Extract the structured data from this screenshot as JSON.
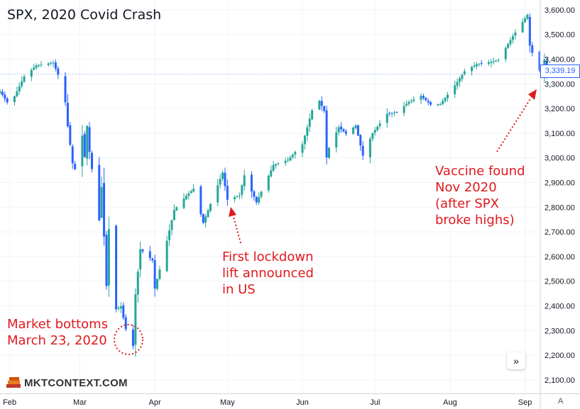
{
  "title": "SPX, 2020 Covid Crash",
  "annotations": {
    "bottom": "Market bottoms\nMarch 23, 2020",
    "lockdown": "First lockdown\nlift announced\nin US",
    "vaccine": "Vaccine found\nNov 2020\n(after SPX\nbroke highs)"
  },
  "colors": {
    "up": "#26a69a",
    "down": "#2962ff",
    "annotation": "#e0191e",
    "grid": "#f0f3fa"
  },
  "last_price_label": "3,339.19",
  "logo_text": "MKTCONTEXT.COM",
  "auto_label": "A",
  "scroll_icon": "double-chevron-right-icon",
  "chart_data": {
    "type": "candlestick",
    "title": "SPX, 2020 Covid Crash",
    "y_ticks": [
      "2,100.00",
      "2,200.00",
      "2,300.00",
      "2,400.00",
      "2,500.00",
      "2,600.00",
      "2,700.00",
      "2,800.00",
      "2,900.00",
      "3,000.00",
      "3,100.00",
      "3,200.00",
      "3,300.00",
      "3,400.00",
      "3,500.00",
      "3,600.00"
    ],
    "y_tick_values": [
      2100,
      2200,
      2300,
      2400,
      2500,
      2600,
      2700,
      2800,
      2900,
      3000,
      3100,
      3200,
      3300,
      3400,
      3500,
      3600
    ],
    "x_ticks": [
      "Feb",
      "Mar",
      "Apr",
      "May",
      "Jun",
      "Jul",
      "Aug",
      "Sep"
    ],
    "x_tick_dates": [
      "2020-02-01",
      "2020-03-01",
      "2020-04-01",
      "2020-05-01",
      "2020-06-01",
      "2020-07-01",
      "2020-08-01",
      "2020-09-01"
    ],
    "x_range": [
      "2020-01-28",
      "2020-09-07"
    ],
    "ylim": [
      2045,
      3640
    ],
    "last_price": 3339.19,
    "grid": true,
    "waypoints": [
      [
        "2020-01-28",
        3270
      ],
      [
        "2020-01-31",
        3225
      ],
      [
        "2020-02-03",
        3250
      ],
      [
        "2020-02-07",
        3330
      ],
      [
        "2020-02-12",
        3375
      ],
      [
        "2020-02-19",
        3386
      ],
      [
        "2020-02-21",
        3337
      ],
      [
        "2020-02-24",
        3225
      ],
      [
        "2020-02-25",
        3128
      ],
      [
        "2020-02-27",
        2978
      ],
      [
        "2020-02-28",
        2954
      ],
      [
        "2020-03-02",
        3090
      ],
      [
        "2020-03-03",
        3003
      ],
      [
        "2020-03-04",
        3130
      ],
      [
        "2020-03-05",
        3024
      ],
      [
        "2020-03-09",
        2746
      ],
      [
        "2020-03-10",
        2882
      ],
      [
        "2020-03-12",
        2480
      ],
      [
        "2020-03-13",
        2711
      ],
      [
        "2020-03-16",
        2386
      ],
      [
        "2020-03-18",
        2398
      ],
      [
        "2020-03-20",
        2305
      ],
      [
        "2020-03-23",
        2237
      ],
      [
        "2020-03-24",
        2447
      ],
      [
        "2020-03-26",
        2630
      ],
      [
        "2020-03-31",
        2585
      ],
      [
        "2020-04-01",
        2470
      ],
      [
        "2020-04-06",
        2664
      ],
      [
        "2020-04-09",
        2789
      ],
      [
        "2020-04-14",
        2846
      ],
      [
        "2020-04-17",
        2875
      ],
      [
        "2020-04-21",
        2737
      ],
      [
        "2020-04-29",
        2940
      ],
      [
        "2020-05-01",
        2830
      ],
      [
        "2020-05-06",
        2848
      ],
      [
        "2020-05-08",
        2929
      ],
      [
        "2020-05-13",
        2820
      ],
      [
        "2020-05-15",
        2863
      ],
      [
        "2020-05-20",
        2971
      ],
      [
        "2020-05-26",
        2992
      ],
      [
        "2020-06-01",
        3055
      ],
      [
        "2020-06-05",
        3193
      ],
      [
        "2020-06-08",
        3232
      ],
      [
        "2020-06-10",
        3190
      ],
      [
        "2020-06-11",
        3002
      ],
      [
        "2020-06-12",
        3041
      ],
      [
        "2020-06-16",
        3124
      ],
      [
        "2020-06-19",
        3098
      ],
      [
        "2020-06-23",
        3131
      ],
      [
        "2020-06-26",
        3009
      ],
      [
        "2020-06-30",
        3100
      ],
      [
        "2020-07-06",
        3179
      ],
      [
        "2020-07-10",
        3185
      ],
      [
        "2020-07-15",
        3227
      ],
      [
        "2020-07-20",
        3251
      ],
      [
        "2020-07-24",
        3216
      ],
      [
        "2020-07-28",
        3218
      ],
      [
        "2020-08-03",
        3294
      ],
      [
        "2020-08-07",
        3351
      ],
      [
        "2020-08-12",
        3380
      ],
      [
        "2020-08-18",
        3389
      ],
      [
        "2020-08-21",
        3397
      ],
      [
        "2020-08-26",
        3478
      ],
      [
        "2020-08-28",
        3508
      ],
      [
        "2020-09-02",
        3580
      ],
      [
        "2020-09-03",
        3455
      ],
      [
        "2020-09-04",
        3426
      ],
      [
        "2020-09-08",
        3331
      ],
      [
        "2020-09-09",
        3398
      ],
      [
        "2020-09-10",
        3339
      ]
    ]
  }
}
